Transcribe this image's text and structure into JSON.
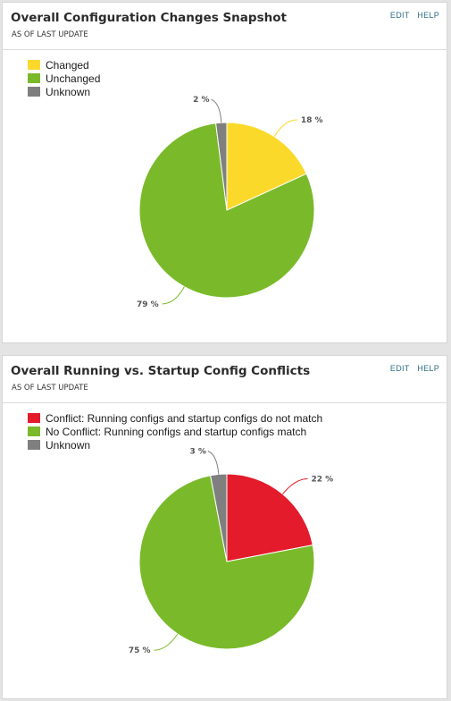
{
  "header_actions": {
    "edit": "EDIT",
    "help": "HELP"
  },
  "chart_data": [
    {
      "type": "pie",
      "title": "Overall Configuration Changes Snapshot",
      "subtitle": "AS OF LAST UPDATE",
      "categories": [
        "Changed",
        "Unchanged",
        "Unknown"
      ],
      "values": [
        18,
        79,
        2
      ],
      "labels": [
        "18 %",
        "79 %",
        "2 %"
      ],
      "colors": [
        "#fbd92b",
        "#7aba2a",
        "#7f7f7f"
      ],
      "legend_position": "top-left"
    },
    {
      "type": "pie",
      "title": "Overall Running vs. Startup Config Conflicts",
      "subtitle": "AS OF LAST UPDATE",
      "categories": [
        "Conflict: Running configs and startup configs do not match",
        "No Conflict: Running configs and startup configs match",
        "Unknown"
      ],
      "values": [
        22,
        75,
        3
      ],
      "labels": [
        "22 %",
        "75 %",
        "3 %"
      ],
      "colors": [
        "#e31b2b",
        "#7aba2a",
        "#7f7f7f"
      ],
      "legend_position": "top-left"
    }
  ]
}
